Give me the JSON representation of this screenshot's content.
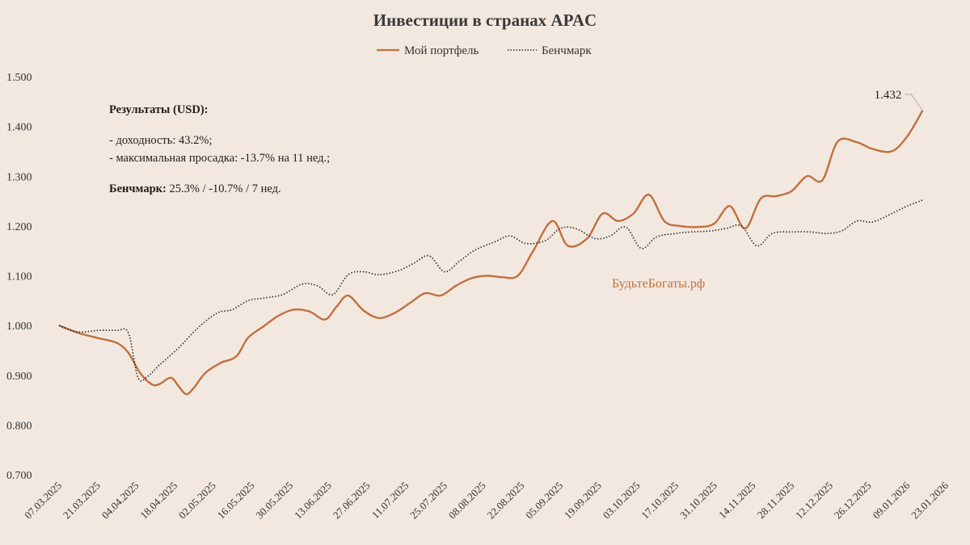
{
  "chart_data": {
    "type": "line",
    "title": "Инвестиции в странах APAC",
    "x": [
      "07.03.2025",
      "21.03.2025",
      "04.04.2025",
      "18.04.2025",
      "02.05.2025",
      "16.05.2025",
      "30.05.2025",
      "13.06.2025",
      "27.06.2025",
      "11.07.2025",
      "25.07.2025",
      "08.08.2025",
      "22.08.2025",
      "05.09.2025",
      "19.09.2025",
      "03.10.2025",
      "17.10.2025",
      "31.10.2025",
      "14.11.2025",
      "28.11.2025",
      "12.12.2025",
      "26.12.2025",
      "09.01.2026",
      "23.01.2026"
    ],
    "ylim": [
      0.7,
      1.5
    ],
    "yticks": [
      0.7,
      0.8,
      0.9,
      1.0,
      1.1,
      1.2,
      1.3,
      1.4,
      1.5
    ],
    "ytick_labels": [
      "0.700",
      "0.800",
      "0.900",
      "1.000",
      "1.100",
      "1.200",
      "1.300",
      "1.400",
      "1.500"
    ],
    "grid": false,
    "legend_position": "top",
    "series": [
      {
        "name": "Мой портфель",
        "style": "solid",
        "color": "#c0703f",
        "points": [
          [
            0,
            1.0
          ],
          [
            0.5,
            0.985
          ],
          [
            1,
            0.975
          ],
          [
            1.5,
            0.965
          ],
          [
            1.8,
            0.945
          ],
          [
            2.1,
            0.905
          ],
          [
            2.4,
            0.882
          ],
          [
            2.6,
            0.882
          ],
          [
            2.9,
            0.895
          ],
          [
            3.1,
            0.878
          ],
          [
            3.3,
            0.862
          ],
          [
            3.5,
            0.875
          ],
          [
            3.8,
            0.905
          ],
          [
            4.2,
            0.925
          ],
          [
            4.6,
            0.938
          ],
          [
            4.9,
            0.975
          ],
          [
            5.3,
            0.998
          ],
          [
            5.7,
            1.02
          ],
          [
            6.1,
            1.032
          ],
          [
            6.5,
            1.028
          ],
          [
            6.9,
            1.012
          ],
          [
            7.2,
            1.038
          ],
          [
            7.5,
            1.06
          ],
          [
            7.9,
            1.03
          ],
          [
            8.3,
            1.015
          ],
          [
            8.7,
            1.025
          ],
          [
            9.1,
            1.045
          ],
          [
            9.5,
            1.065
          ],
          [
            9.9,
            1.06
          ],
          [
            10.3,
            1.08
          ],
          [
            10.7,
            1.095
          ],
          [
            11.1,
            1.1
          ],
          [
            11.5,
            1.097
          ],
          [
            11.9,
            1.1
          ],
          [
            12.3,
            1.15
          ],
          [
            12.8,
            1.21
          ],
          [
            13.2,
            1.16
          ],
          [
            13.7,
            1.175
          ],
          [
            14.1,
            1.225
          ],
          [
            14.5,
            1.21
          ],
          [
            14.9,
            1.225
          ],
          [
            15.3,
            1.263
          ],
          [
            15.7,
            1.21
          ],
          [
            16.1,
            1.2
          ],
          [
            16.6,
            1.198
          ],
          [
            17.0,
            1.205
          ],
          [
            17.4,
            1.24
          ],
          [
            17.8,
            1.195
          ],
          [
            18.2,
            1.255
          ],
          [
            18.6,
            1.26
          ],
          [
            19.0,
            1.27
          ],
          [
            19.4,
            1.3
          ],
          [
            19.8,
            1.292
          ],
          [
            20.2,
            1.37
          ],
          [
            20.7,
            1.368
          ],
          [
            21.1,
            1.355
          ],
          [
            21.6,
            1.35
          ],
          [
            22.0,
            1.38
          ],
          [
            22.4,
            1.432
          ]
        ]
      },
      {
        "name": "Бенчмарк",
        "style": "dotted",
        "color": "#2a2a2a",
        "points": [
          [
            0,
            1.0
          ],
          [
            0.5,
            0.987
          ],
          [
            1,
            0.99
          ],
          [
            1.5,
            0.99
          ],
          [
            1.8,
            0.985
          ],
          [
            2.05,
            0.895
          ],
          [
            2.3,
            0.898
          ],
          [
            2.6,
            0.92
          ],
          [
            3.1,
            0.955
          ],
          [
            3.6,
            0.995
          ],
          [
            4.1,
            1.025
          ],
          [
            4.5,
            1.032
          ],
          [
            4.9,
            1.05
          ],
          [
            5.3,
            1.055
          ],
          [
            5.8,
            1.062
          ],
          [
            6.3,
            1.083
          ],
          [
            6.7,
            1.08
          ],
          [
            7.1,
            1.062
          ],
          [
            7.5,
            1.102
          ],
          [
            7.9,
            1.108
          ],
          [
            8.3,
            1.102
          ],
          [
            8.8,
            1.11
          ],
          [
            9.2,
            1.125
          ],
          [
            9.6,
            1.14
          ],
          [
            10.0,
            1.108
          ],
          [
            10.4,
            1.13
          ],
          [
            10.8,
            1.152
          ],
          [
            11.3,
            1.168
          ],
          [
            11.7,
            1.18
          ],
          [
            12.1,
            1.165
          ],
          [
            12.6,
            1.17
          ],
          [
            13.0,
            1.195
          ],
          [
            13.4,
            1.195
          ],
          [
            13.9,
            1.175
          ],
          [
            14.3,
            1.18
          ],
          [
            14.7,
            1.198
          ],
          [
            15.1,
            1.155
          ],
          [
            15.5,
            1.178
          ],
          [
            16.0,
            1.185
          ],
          [
            16.4,
            1.188
          ],
          [
            16.9,
            1.19
          ],
          [
            17.3,
            1.195
          ],
          [
            17.7,
            1.2
          ],
          [
            18.1,
            1.16
          ],
          [
            18.5,
            1.185
          ],
          [
            19.0,
            1.188
          ],
          [
            19.5,
            1.188
          ],
          [
            19.9,
            1.185
          ],
          [
            20.3,
            1.19
          ],
          [
            20.7,
            1.21
          ],
          [
            21.1,
            1.208
          ],
          [
            21.6,
            1.225
          ],
          [
            22.0,
            1.24
          ],
          [
            22.4,
            1.252
          ]
        ]
      }
    ],
    "annotation": {
      "label": "1.432",
      "x": 22.4,
      "y": 1.432
    }
  },
  "notes": {
    "results_title": "Результаты (USD):",
    "line1": "- доходность: 43.2%;",
    "line2": "- максимальная просадка: -13.7% на 11 нед.;",
    "benchmark_label": "Бенчмарк:",
    "benchmark_value": " 25.3% / -10.7% / 7 нед."
  },
  "watermark": "БудьтеБогаты.рф"
}
